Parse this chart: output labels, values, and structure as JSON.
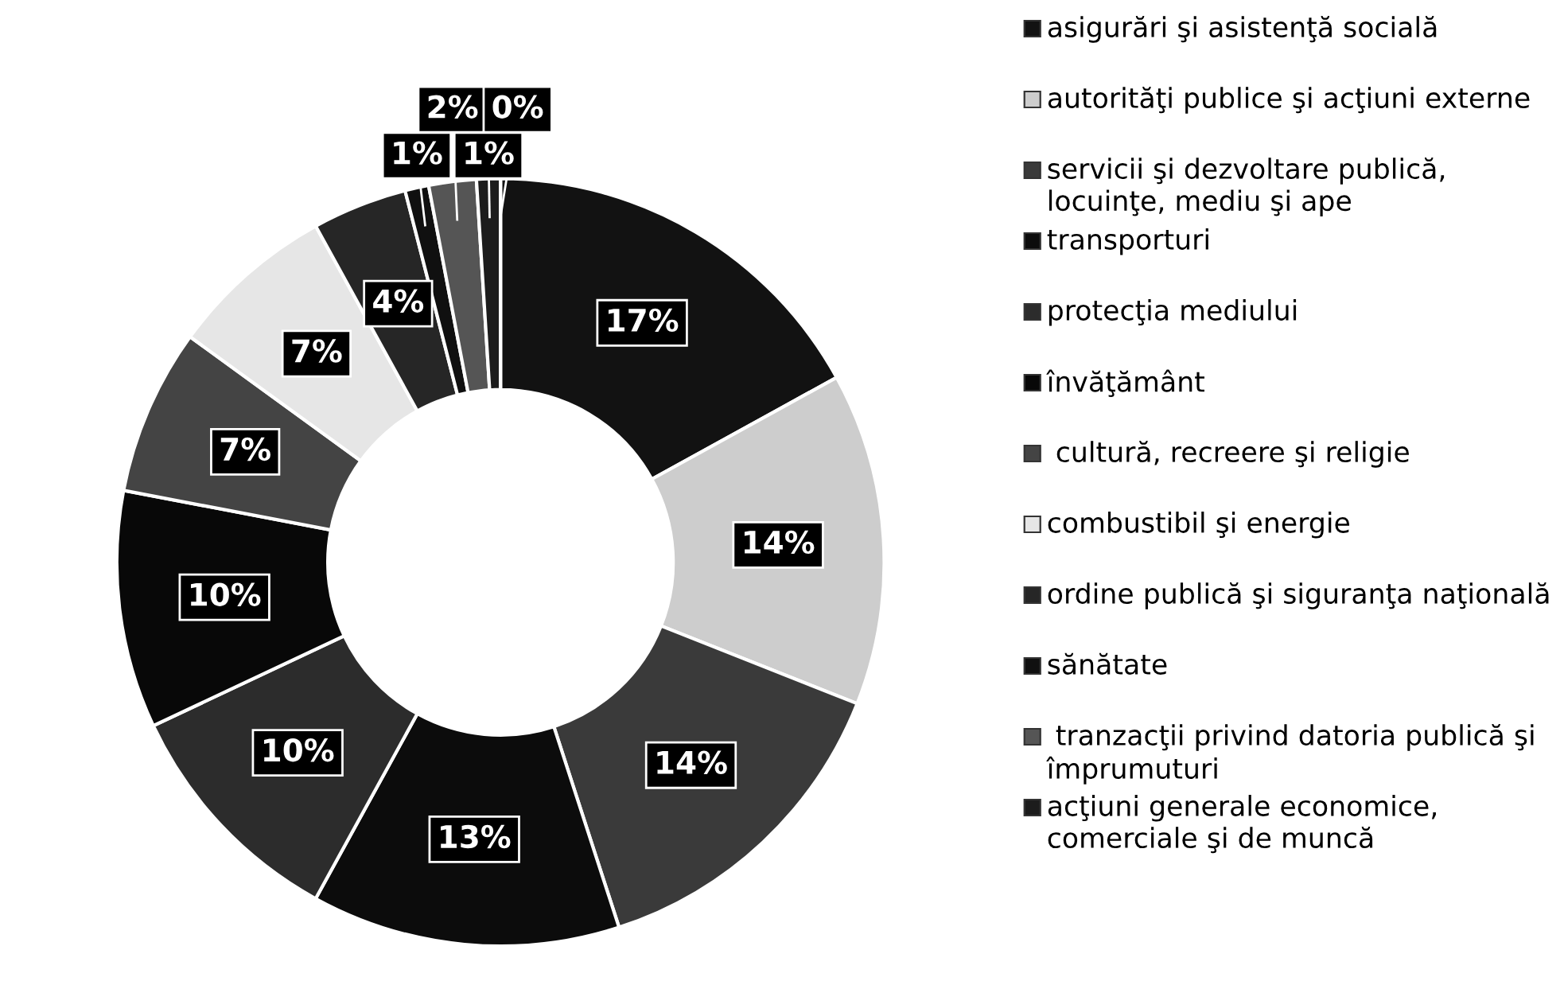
{
  "chart_data": {
    "type": "donut",
    "categories": [
      "asigurări şi asistenţă socială",
      "autorităţi publice şi acţiuni externe",
      "servicii şi dezvoltare publică, locuinţe, mediu şi ape",
      "transporturi",
      "protecţia mediului",
      "învăţământ",
      " cultură, recreere şi religie",
      "combustibil şi energie",
      "ordine publică şi siguranţa naţională",
      "sănătate",
      " tranzacţii privind datoria publică şi împrumuturi",
      "acţiuni generale economice, comerciale şi de muncă",
      null
    ],
    "values": [
      17,
      14,
      14,
      13,
      10,
      10,
      7,
      7,
      4,
      1,
      2,
      1,
      0
    ],
    "value_labels": [
      "17%",
      "14%",
      "14%",
      "13%",
      "10%",
      "10%",
      "7%",
      "7%",
      "4%",
      "1%",
      "2%",
      "1%",
      "0%"
    ],
    "colors": [
      "#121212",
      "#cdcdcd",
      "#3a3a3a",
      "#0c0c0c",
      "#2c2c2c",
      "#080808",
      "#444444",
      "#e6e6e6",
      "#262626",
      "#101010",
      "#555555",
      "#1c1c1c",
      "#777777"
    ],
    "legend": "right"
  }
}
